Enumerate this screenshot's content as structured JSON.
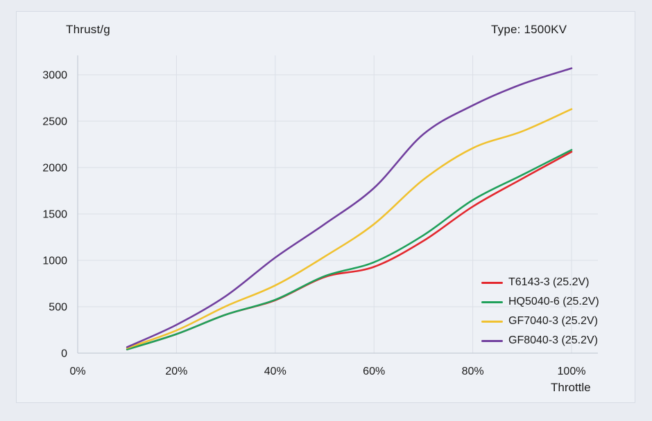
{
  "header": {
    "y_axis_title": "Thrust/g",
    "type_label": "Type: 1500KV"
  },
  "x_axis_label": "Throttle",
  "colors": {
    "page_background": "#e9ecf2",
    "panel_background": "#eef1f6",
    "panel_border": "#d6dbe4",
    "grid": "#dbdfe7",
    "axis": "#c6ccd6",
    "text": "#1a1a1a"
  },
  "chart_data": {
    "type": "line",
    "title": "",
    "xlabel": "Throttle",
    "ylabel": "Thrust/g",
    "xlim": [
      0,
      100
    ],
    "ylim": [
      0,
      3000
    ],
    "x_ticks": [
      0,
      20,
      40,
      60,
      80,
      100
    ],
    "x_tick_labels": [
      "0%",
      "20%",
      "40%",
      "60%",
      "80%",
      "100%"
    ],
    "y_ticks": [
      0,
      500,
      1000,
      1500,
      2000,
      2500,
      3000
    ],
    "y_tick_labels": [
      "0",
      "500",
      "1000",
      "1500",
      "2000",
      "2500",
      "3000"
    ],
    "grid": true,
    "legend_position": "inside-bottom-right",
    "x": [
      10,
      20,
      30,
      40,
      50,
      60,
      70,
      80,
      90,
      100
    ],
    "series": [
      {
        "name": "T6143-3 (25.2V)",
        "color": "#e3282e",
        "values": [
          40,
          205,
          415,
          570,
          820,
          930,
          1210,
          1580,
          1880,
          2170
        ]
      },
      {
        "name": "HQ5040-6 (25.2V)",
        "color": "#1fa05a",
        "values": [
          40,
          205,
          415,
          575,
          830,
          980,
          1270,
          1650,
          1920,
          2190
        ]
      },
      {
        "name": "GF7040-3 (25.2V)",
        "color": "#f0c12f",
        "values": [
          55,
          245,
          505,
          730,
          1040,
          1390,
          1870,
          2210,
          2390,
          2630
        ]
      },
      {
        "name": "GF8040-3 (25.2V)",
        "color": "#713f9e",
        "values": [
          65,
          305,
          615,
          1030,
          1390,
          1780,
          2360,
          2670,
          2900,
          3070
        ]
      }
    ]
  }
}
